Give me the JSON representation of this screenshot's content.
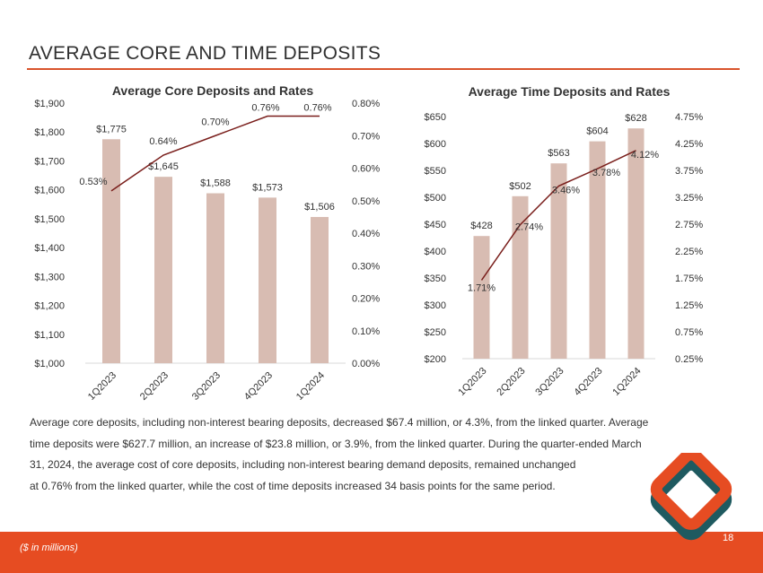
{
  "page": {
    "title": "AVERAGE CORE AND TIME DEPOSITS",
    "page_number": "18",
    "footer_note": "($ in millions)"
  },
  "body_text": [
    "Average core deposits, including non-interest bearing deposits, decreased $67.4 million, or 4.3%, from the linked quarter. Average",
    "time deposits were $627.7 million, an increase of $23.8 million, or 3.9%, from the linked quarter. During the quarter-ended March",
    "31, 2024, the average cost of core deposits, including non-interest bearing demand deposits, remained unchanged",
    "at 0.76% from the linked quarter, while the cost of time deposits increased 34 basis points for the same period."
  ],
  "colors": {
    "bar": "#d8bcb2",
    "line": "#7a1f1c",
    "accent": "#e64c22",
    "logo_orange": "#e64c22",
    "logo_teal": "#1f5a60"
  },
  "chart_data": [
    {
      "type": "bar",
      "title": "Average Core Deposits and Rates",
      "categories": [
        "1Q2023",
        "2Q2023",
        "3Q2023",
        "4Q2023",
        "1Q2024"
      ],
      "series": [
        {
          "name": "Average Core Deposits",
          "axis": "left",
          "values": [
            1775,
            1645,
            1588,
            1573,
            1506
          ],
          "labels": [
            "$1,775",
            "$1,645",
            "$1,588",
            "$1,573",
            "$1,506"
          ]
        },
        {
          "name": "Cost of Core Deposits",
          "type": "line",
          "axis": "right",
          "values": [
            0.53,
            0.64,
            0.7,
            0.76,
            0.76
          ],
          "labels": [
            "0.53%",
            "0.64%",
            "0.70%",
            "0.76%",
            "0.76%"
          ]
        }
      ],
      "ylim": [
        1000,
        1900
      ],
      "yticks": [
        "$1,000",
        "$1,100",
        "$1,200",
        "$1,300",
        "$1,400",
        "$1,500",
        "$1,600",
        "$1,700",
        "$1,800",
        "$1,900"
      ],
      "y2lim": [
        0.0,
        0.8
      ],
      "y2ticks": [
        "0.00%",
        "0.10%",
        "0.20%",
        "0.30%",
        "0.40%",
        "0.50%",
        "0.60%",
        "0.70%",
        "0.80%"
      ],
      "xlabel": "",
      "ylabel": ""
    },
    {
      "type": "bar",
      "title": "Average Time Deposits and Rates",
      "categories": [
        "1Q2023",
        "2Q2023",
        "3Q2023",
        "4Q2023",
        "1Q2024"
      ],
      "series": [
        {
          "name": "Average Time Deposits",
          "axis": "left",
          "values": [
            428,
            502,
            563,
            604,
            628
          ],
          "labels": [
            "$428",
            "$502",
            "$563",
            "$604",
            "$628"
          ]
        },
        {
          "name": "Cost of Time Deposits",
          "type": "line",
          "axis": "right",
          "values": [
            1.71,
            2.74,
            3.46,
            3.78,
            4.12
          ],
          "labels": [
            "1.71%",
            "2.74%",
            "3.46%",
            "3.78%",
            "4.12%"
          ]
        }
      ],
      "ylim": [
        200,
        650
      ],
      "yticks": [
        "$200",
        "$250",
        "$300",
        "$350",
        "$400",
        "$450",
        "$500",
        "$550",
        "$600",
        "$650"
      ],
      "y2lim": [
        0.25,
        4.75
      ],
      "y2ticks": [
        "0.25%",
        "0.75%",
        "1.25%",
        "1.75%",
        "2.25%",
        "2.75%",
        "3.25%",
        "3.75%",
        "4.25%",
        "4.75%"
      ],
      "xlabel": "",
      "ylabel": ""
    }
  ]
}
